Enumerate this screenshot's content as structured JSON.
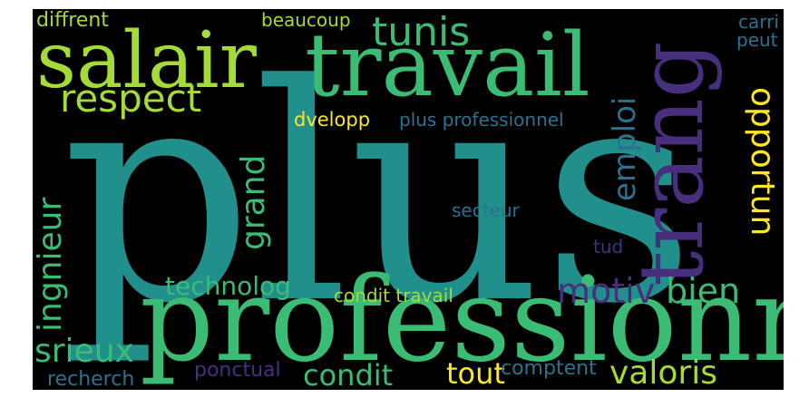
{
  "words": [
    {
      "key": "plus",
      "text": "plus",
      "color": "#21908d"
    },
    {
      "key": "professionnel",
      "text": "professionnel",
      "color": "#3bbc75"
    },
    {
      "key": "travail",
      "text": "travail",
      "color": "#3bbc75"
    },
    {
      "key": "salair",
      "text": "salair",
      "color": "#a5db36"
    },
    {
      "key": "trang",
      "text": "trang",
      "color": "#472f7d"
    },
    {
      "key": "respect",
      "text": "respect",
      "color": "#a5db36"
    },
    {
      "key": "tunis",
      "text": "tunis",
      "color": "#3bbc75"
    },
    {
      "key": "diffrent",
      "text": "diffrent",
      "color": "#a5db36"
    },
    {
      "key": "beaucoup",
      "text": "beaucoup",
      "color": "#a5db36"
    },
    {
      "key": "carri",
      "text": "carri",
      "color": "#2c728e"
    },
    {
      "key": "peut",
      "text": "peut",
      "color": "#2c728e"
    },
    {
      "key": "dvelopp",
      "text": "dvelopp",
      "color": "#fde725"
    },
    {
      "key": "plusprofessionnel",
      "text": "plus professionnel",
      "color": "#2c728e"
    },
    {
      "key": "emploi",
      "text": "emploi",
      "color": "#2c728e"
    },
    {
      "key": "opportun",
      "text": "opportun",
      "color": "#fde725"
    },
    {
      "key": "ingnieur",
      "text": "ingnieur",
      "color": "#3bbc75"
    },
    {
      "key": "grand",
      "text": "grand",
      "color": "#3bbc75"
    },
    {
      "key": "secteur",
      "text": "secteur",
      "color": "#2c728e"
    },
    {
      "key": "tud",
      "text": "tud",
      "color": "#472f7d"
    },
    {
      "key": "technolog",
      "text": "technolog",
      "color": "#3bbc75"
    },
    {
      "key": "conditttravail",
      "text": "condit travail",
      "color": "#a5db36"
    },
    {
      "key": "motiv",
      "text": "motiv",
      "color": "#472f7d"
    },
    {
      "key": "bien",
      "text": "bien",
      "color": "#3bbc75"
    },
    {
      "key": "srieux",
      "text": "srieux",
      "color": "#3bbc75"
    },
    {
      "key": "recherch",
      "text": "recherch",
      "color": "#2c728e"
    },
    {
      "key": "ponctual",
      "text": "ponctual",
      "color": "#472f7d"
    },
    {
      "key": "condit",
      "text": "condit",
      "color": "#3bbc75"
    },
    {
      "key": "tout",
      "text": "tout",
      "color": "#fde725"
    },
    {
      "key": "comptent",
      "text": "comptent",
      "color": "#2c728e"
    },
    {
      "key": "valoris",
      "text": "valoris",
      "color": "#a5db36"
    }
  ]
}
